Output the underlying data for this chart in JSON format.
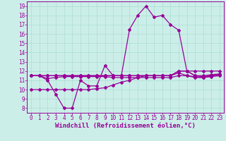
{
  "xlabel": "Windchill (Refroidissement éolien,°C)",
  "bg_color": "#cceee8",
  "line_color": "#990099",
  "xlim": [
    -0.5,
    23.5
  ],
  "ylim": [
    7.5,
    19.5
  ],
  "xticks": [
    0,
    1,
    2,
    3,
    4,
    5,
    6,
    7,
    8,
    9,
    10,
    11,
    12,
    13,
    14,
    15,
    16,
    17,
    18,
    19,
    20,
    21,
    22,
    23
  ],
  "yticks": [
    8,
    9,
    10,
    11,
    12,
    13,
    14,
    15,
    16,
    17,
    18,
    19
  ],
  "line1_x": [
    0,
    1,
    2,
    3,
    4,
    5,
    6,
    7,
    8,
    9,
    10,
    11,
    12,
    13,
    14,
    15,
    16,
    17,
    18,
    19,
    20,
    21,
    22,
    23
  ],
  "line1_y": [
    11.5,
    11.5,
    11.0,
    9.5,
    8.0,
    8.0,
    11.0,
    10.4,
    10.4,
    12.6,
    11.5,
    11.5,
    16.5,
    18.0,
    19.0,
    17.8,
    18.0,
    17.0,
    16.4,
    12.0,
    11.5,
    11.4,
    11.5,
    11.6
  ],
  "line2_x": [
    0,
    1,
    2,
    3,
    4,
    5,
    6,
    7,
    8,
    9,
    10,
    11,
    12,
    13,
    14,
    15,
    16,
    17,
    18,
    19,
    20,
    21,
    22,
    23
  ],
  "line2_y": [
    11.5,
    11.5,
    11.5,
    11.5,
    11.5,
    11.5,
    11.5,
    11.5,
    11.5,
    11.5,
    11.5,
    11.5,
    11.5,
    11.5,
    11.5,
    11.5,
    11.5,
    11.5,
    12.0,
    12.0,
    11.5,
    11.5,
    11.6,
    11.7
  ],
  "line3_x": [
    0,
    1,
    2,
    3,
    4,
    5,
    6,
    7,
    8,
    9,
    10,
    11,
    12,
    13,
    14,
    15,
    16,
    17,
    18,
    19,
    20,
    21,
    22,
    23
  ],
  "line3_y": [
    11.5,
    11.5,
    11.5,
    11.5,
    11.5,
    11.5,
    11.5,
    11.5,
    11.5,
    11.5,
    11.5,
    11.5,
    11.5,
    11.5,
    11.5,
    11.5,
    11.5,
    11.5,
    11.8,
    11.5,
    11.4,
    11.3,
    11.5,
    11.6
  ],
  "line4_x": [
    0,
    1,
    2,
    3,
    4,
    5,
    6,
    7,
    8,
    9,
    10,
    11,
    12,
    13,
    14,
    15,
    16,
    17,
    18,
    19,
    20,
    21,
    22,
    23
  ],
  "line4_y": [
    11.5,
    11.5,
    11.2,
    11.3,
    11.4,
    11.4,
    11.4,
    11.4,
    11.4,
    11.4,
    11.3,
    11.3,
    11.3,
    11.3,
    11.3,
    11.3,
    11.3,
    11.3,
    11.5,
    11.5,
    11.3,
    11.3,
    11.4,
    11.5
  ],
  "line5_x": [
    0,
    1,
    2,
    3,
    4,
    5,
    6,
    7,
    8,
    9,
    10,
    11,
    12,
    13,
    14,
    15,
    16,
    17,
    18,
    19,
    20,
    21,
    22,
    23
  ],
  "line5_y": [
    10.0,
    10.0,
    10.0,
    10.0,
    10.0,
    10.0,
    10.0,
    10.0,
    10.1,
    10.2,
    10.5,
    10.8,
    11.0,
    11.3,
    11.5,
    11.5,
    11.5,
    11.5,
    12.0,
    12.0,
    12.0,
    12.0,
    12.0,
    12.0
  ],
  "grid_color": "#aaddd5",
  "tick_fontsize": 5.5,
  "xlabel_fontsize": 6.5
}
